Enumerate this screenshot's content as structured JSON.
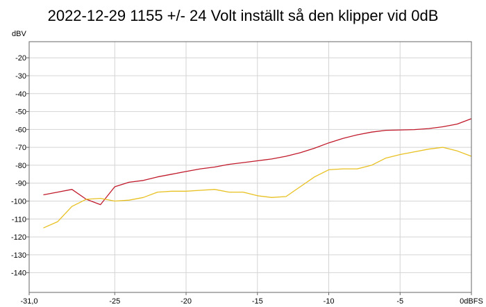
{
  "chart_data": {
    "type": "line",
    "title": "2022-12-29 1155 +/- 24 Volt inställt så den klipper vid 0dB",
    "ylabel": "dBV",
    "xlim": [
      -31,
      0
    ],
    "ylim": [
      -151,
      -11
    ],
    "grid": true,
    "x_ticks": [
      -31,
      -25,
      -20,
      -15,
      -10,
      -5,
      0
    ],
    "x_tick_labels": [
      "-31,0",
      "-25",
      "-20",
      "-15",
      "-10",
      "-5",
      "0dBFS"
    ],
    "y_ticks": [
      -20,
      -30,
      -40,
      -50,
      -60,
      -70,
      -80,
      -90,
      -100,
      -110,
      -120,
      -130,
      -140
    ],
    "y_tick_labels": [
      "-20",
      "-30",
      "-40",
      "-50",
      "-60",
      "-70",
      "-80",
      "-90",
      "-100",
      "-110",
      "-120",
      "-130",
      "-140"
    ],
    "series": [
      {
        "color": "#c0192a",
        "x": [
          -30,
          -29,
          -28,
          -27,
          -26,
          -25,
          -24,
          -23,
          -22,
          -21,
          -20,
          -19,
          -18,
          -17,
          -16,
          -15,
          -14,
          -13,
          -12,
          -11,
          -10,
          -9,
          -8,
          -7,
          -6,
          -5,
          -4,
          -3,
          -2,
          -1,
          0
        ],
        "y": [
          -96.5,
          -95,
          -93.5,
          -99,
          -102,
          -92,
          -89.5,
          -88.5,
          -86.5,
          -85,
          -83.5,
          -82,
          -81,
          -79.5,
          -78.5,
          -77.5,
          -76.5,
          -75,
          -73,
          -70.5,
          -67.5,
          -65,
          -63,
          -61.5,
          -60.5,
          -60.3,
          -60.1,
          -59.5,
          -58.5,
          -57,
          -54
        ]
      },
      {
        "color": "#e8c020",
        "x": [
          -30,
          -29,
          -28,
          -27,
          -26,
          -25,
          -24,
          -23,
          -22,
          -21,
          -20,
          -19,
          -18,
          -17,
          -16,
          -15,
          -14,
          -13,
          -12,
          -11,
          -10,
          -9,
          -8,
          -7,
          -6,
          -5,
          -4,
          -3,
          -2,
          -1,
          0
        ],
        "y": [
          -115,
          -111.5,
          -103,
          -99,
          -98.5,
          -100,
          -99.5,
          -98,
          -95,
          -94.5,
          -94.5,
          -94,
          -93.5,
          -95,
          -95,
          -97,
          -98,
          -97.5,
          -92,
          -86.5,
          -82.5,
          -82,
          -82,
          -80,
          -76,
          -74,
          -72.5,
          -71,
          -70,
          -72,
          -75
        ]
      }
    ]
  }
}
